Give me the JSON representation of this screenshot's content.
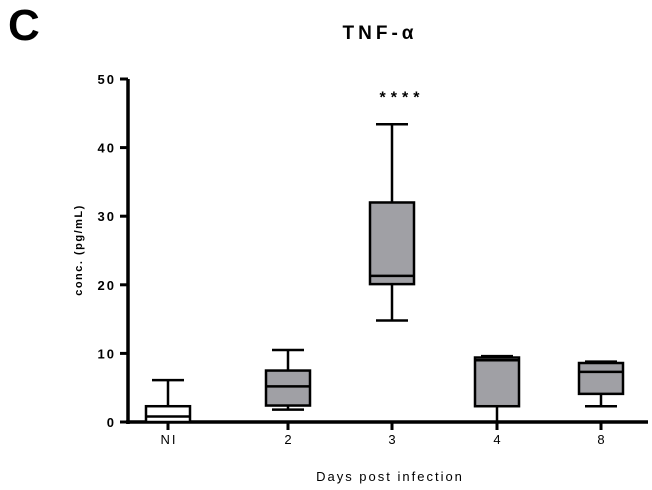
{
  "panel_label": "C",
  "chart_data": {
    "type": "box",
    "title": "TNF-α",
    "xlabel": "Days post infection",
    "ylabel": "conc. (pg/mL)",
    "ylim": [
      0,
      50
    ],
    "yticks": [
      "0",
      "10",
      "20",
      "30",
      "40",
      "50"
    ],
    "categories": [
      "NI",
      "2",
      "3",
      "4",
      "8"
    ],
    "boxes": [
      {
        "category": "NI",
        "min": 0,
        "q1": 0,
        "median": 0.8,
        "q3": 2.3,
        "max": 6.1,
        "fill": "#ffffff"
      },
      {
        "category": "2",
        "min": 1.8,
        "q1": 2.4,
        "median": 5.2,
        "q3": 7.5,
        "max": 10.5,
        "fill": "#a0a0a5"
      },
      {
        "category": "3",
        "min": 14.8,
        "q1": 20.1,
        "median": 21.3,
        "q3": 32.0,
        "max": 43.4,
        "fill": "#a0a0a5"
      },
      {
        "category": "4",
        "min": 0,
        "q1": 2.3,
        "median": 9.0,
        "q3": 9.4,
        "max": 9.6,
        "fill": "#a0a0a5"
      },
      {
        "category": "8",
        "min": 2.3,
        "q1": 4.1,
        "median": 7.3,
        "q3": 8.6,
        "max": 8.8,
        "fill": "#a0a0a5"
      }
    ],
    "annotations": [
      {
        "category": "3",
        "text": "****"
      }
    ]
  }
}
